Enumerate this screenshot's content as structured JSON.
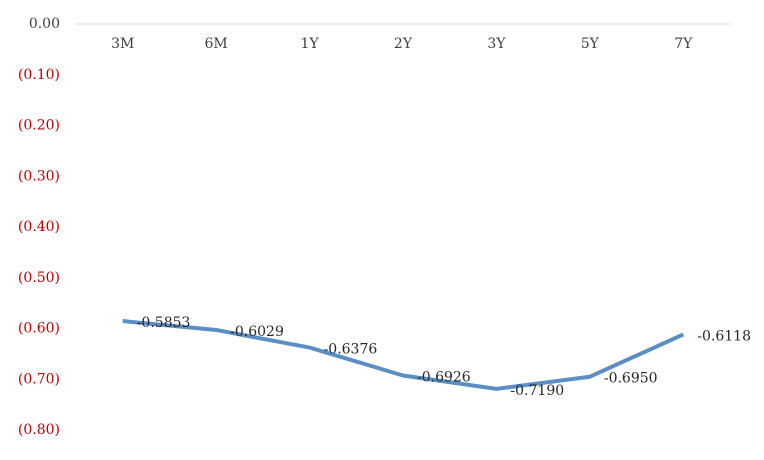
{
  "chart_data": {
    "type": "line",
    "categories": [
      "3M",
      "6M",
      "1Y",
      "2Y",
      "3Y",
      "5Y",
      "7Y"
    ],
    "values": [
      -0.5853,
      -0.6029,
      -0.6376,
      -0.6926,
      -0.719,
      -0.695,
      -0.6118
    ],
    "value_labels": [
      "-0.5853",
      "-0.6029",
      "-0.6376",
      "-0.6926",
      "-0.7190",
      "-0.6950",
      "-0.6118"
    ],
    "color": "#5b8ec4",
    "ylim": [
      -0.8,
      0
    ],
    "yticks": [
      {
        "value": 0,
        "label": "0.00"
      },
      {
        "value": -0.1,
        "label": "(0.10)"
      },
      {
        "value": -0.2,
        "label": "(0.20)"
      },
      {
        "value": -0.3,
        "label": "(0.30)"
      },
      {
        "value": -0.4,
        "label": "(0.40)"
      },
      {
        "value": -0.5,
        "label": "(0.50)"
      },
      {
        "value": -0.6,
        "label": "(0.60)"
      },
      {
        "value": -0.7,
        "label": "(0.70)"
      },
      {
        "value": -0.8,
        "label": "(0.80)"
      }
    ],
    "tick_label_color": "#404040",
    "negative_tick_label_color": "#c00000"
  }
}
